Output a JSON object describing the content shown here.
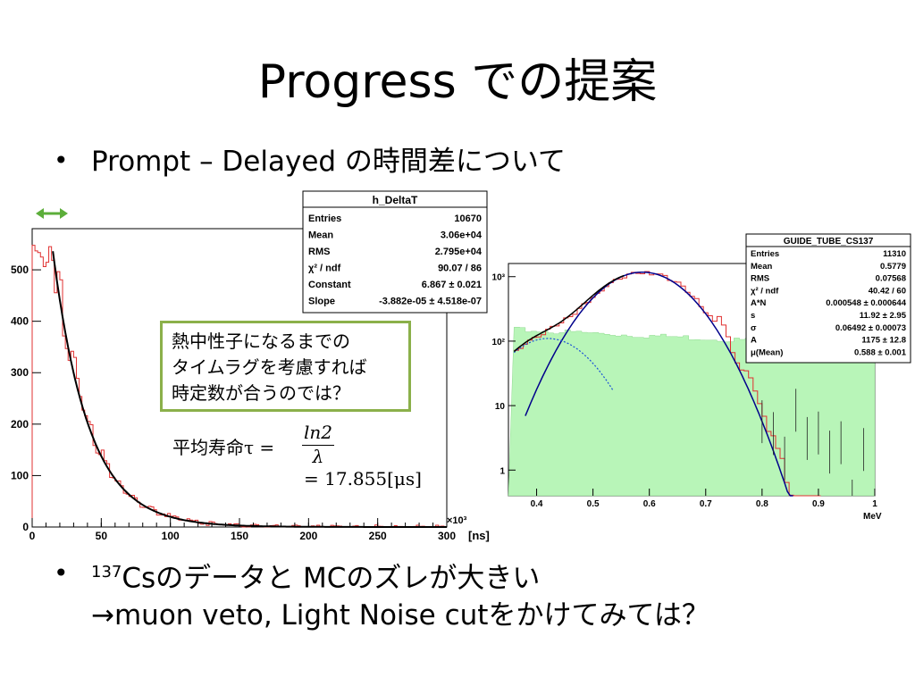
{
  "slide": {
    "title": "Progress での提案",
    "bullet1": "Prompt – Delayed の時間差について",
    "bullet2_sup": "137",
    "bullet2_main": "Csのデータと MCのズレが大きい",
    "bullet2_line2": "→muon veto, Light Noise cutをかけてみては？"
  },
  "callout": {
    "line1": "熱中性子になるまでの",
    "line2": "タイムラグを考慮すれば",
    "line3": "時定数が合うのでは？"
  },
  "formula": {
    "lhs": "平均寿命τ =",
    "num": "ln2",
    "den": "λ",
    "result": "= 17.855[μs]"
  },
  "colors": {
    "accent_green": "#5cae3a",
    "callout_border": "#8bb04a",
    "fill_green": "#b8f5b8",
    "hist_red": "#e03030",
    "fit_blue": "#00008b"
  },
  "chart_data": [
    {
      "type": "histogram",
      "title": "h_DeltaT",
      "xlabel": "[ns]",
      "x_multiplier": "×10³",
      "xlim": [
        0,
        300
      ],
      "ylim": [
        0,
        580
      ],
      "x_ticks": [
        "0",
        "50",
        "100",
        "150",
        "200",
        "250",
        "300"
      ],
      "y_ticks": [
        "0",
        "100",
        "200",
        "300",
        "400",
        "500"
      ],
      "stats": [
        [
          "Entries",
          "10670"
        ],
        [
          "Mean",
          "3.06e+04"
        ],
        [
          "RMS",
          "2.795e+04"
        ],
        [
          "χ² / ndf",
          "90.07 / 86"
        ],
        [
          "Constant",
          "6.867 ± 0.021"
        ],
        [
          "Slope",
          "-3.882e-05 ± 4.518e-07"
        ]
      ],
      "fit": {
        "constant": 6.867,
        "slope_per_ns": -0.03882,
        "x_start": 15
      }
    },
    {
      "type": "histogram",
      "title": "GUIDE_TUBE_CS137",
      "xlabel": "MeV",
      "y_scale": "log",
      "xlim": [
        0.35,
        1.0
      ],
      "ylim": [
        0.4,
        1600
      ],
      "x_ticks": [
        "0.4",
        "0.5",
        "0.6",
        "0.7",
        "0.8",
        "0.9",
        "1"
      ],
      "y_ticks": [
        "1",
        "10",
        "10²",
        "10³"
      ],
      "stats": [
        [
          "Entries",
          "11310"
        ],
        [
          "Mean",
          "0.5779"
        ],
        [
          "RMS",
          "0.07568"
        ],
        [
          "χ² / ndf",
          "40.42 / 60"
        ],
        [
          "A*N",
          "0.000548 ± 0.000644"
        ],
        [
          "s",
          "11.92 ± 2.95"
        ],
        [
          "σ",
          "0.06492 ± 0.00073"
        ],
        [
          "A",
          "1175 ± 12.8"
        ],
        [
          "μ(Mean)",
          "0.588 ± 0.001"
        ]
      ],
      "gauss": {
        "amplitude": 1175,
        "mean": 0.588,
        "sigma": 0.06492
      }
    }
  ]
}
